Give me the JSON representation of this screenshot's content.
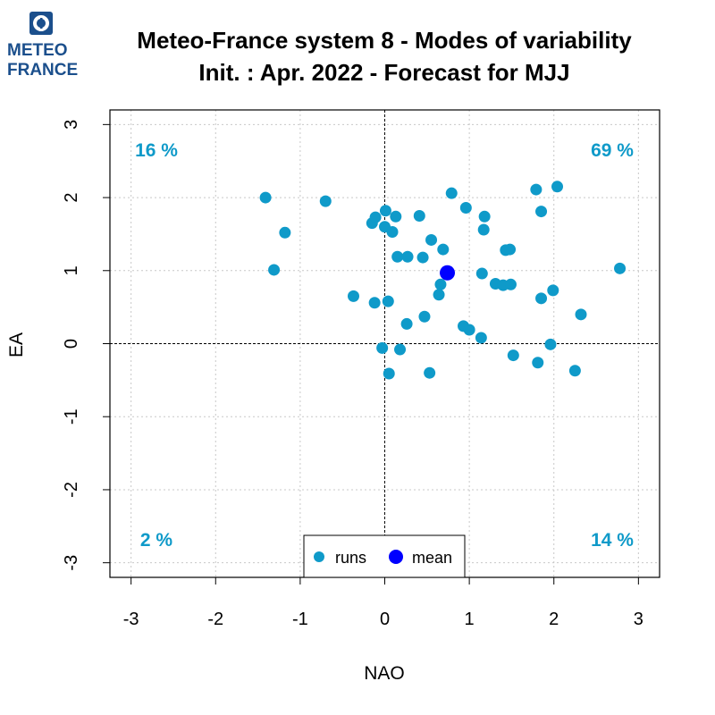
{
  "logo": {
    "line1": "METEO",
    "line2": "FRANCE"
  },
  "colors": {
    "runs": "#0f9ac9",
    "mean": "#0000ff",
    "quadrant_text": "#0f9ac9",
    "logo": "#1b4f8c"
  },
  "chart_data": {
    "type": "scatter",
    "title": "Meteo-France system 8 - Modes of variability",
    "subtitle": "Init. : Apr. 2022 - Forecast for MJJ",
    "xlabel": "NAO",
    "ylabel": "EA",
    "xlim": [
      -3.25,
      3.25
    ],
    "ylim": [
      -3.2,
      3.2
    ],
    "xticks": [
      -3,
      -2,
      -1,
      0,
      1,
      2,
      3
    ],
    "yticks": [
      -3,
      -2,
      -1,
      0,
      1,
      2,
      3
    ],
    "grid": true,
    "legend_position": "bottom-center",
    "quadrant_labels": {
      "top_left": "16 %",
      "top_right": "69 %",
      "bottom_left": "2 %",
      "bottom_right": "14 %"
    },
    "series": [
      {
        "name": "runs",
        "points": [
          [
            -1.41,
            2.0
          ],
          [
            -0.7,
            1.95
          ],
          [
            -1.18,
            1.52
          ],
          [
            -1.31,
            1.01
          ],
          [
            -0.37,
            0.65
          ],
          [
            -0.12,
            0.56
          ],
          [
            0.04,
            0.58
          ],
          [
            -0.15,
            1.65
          ],
          [
            -0.11,
            1.73
          ],
          [
            0.01,
            1.82
          ],
          [
            0.13,
            1.74
          ],
          [
            0.0,
            1.6
          ],
          [
            0.09,
            1.53
          ],
          [
            0.41,
            1.75
          ],
          [
            0.79,
            2.06
          ],
          [
            0.96,
            1.86
          ],
          [
            1.18,
            1.74
          ],
          [
            1.17,
            1.56
          ],
          [
            0.55,
            1.42
          ],
          [
            0.69,
            1.29
          ],
          [
            0.15,
            1.19
          ],
          [
            0.27,
            1.19
          ],
          [
            0.45,
            1.18
          ],
          [
            1.43,
            1.28
          ],
          [
            1.48,
            1.29
          ],
          [
            1.15,
            0.96
          ],
          [
            1.79,
            2.11
          ],
          [
            2.04,
            2.15
          ],
          [
            1.85,
            1.81
          ],
          [
            2.78,
            1.03
          ],
          [
            1.31,
            0.82
          ],
          [
            1.4,
            0.8
          ],
          [
            1.49,
            0.81
          ],
          [
            1.99,
            0.73
          ],
          [
            1.85,
            0.62
          ],
          [
            2.32,
            0.4
          ],
          [
            0.66,
            0.81
          ],
          [
            0.64,
            0.67
          ],
          [
            0.47,
            0.37
          ],
          [
            0.26,
            0.27
          ],
          [
            0.93,
            0.24
          ],
          [
            1.0,
            0.19
          ],
          [
            1.14,
            0.08
          ],
          [
            1.96,
            -0.01
          ],
          [
            -0.03,
            -0.06
          ],
          [
            0.18,
            -0.08
          ],
          [
            1.52,
            -0.16
          ],
          [
            1.81,
            -0.26
          ],
          [
            2.25,
            -0.37
          ],
          [
            0.05,
            -0.41
          ],
          [
            0.53,
            -0.4
          ]
        ]
      },
      {
        "name": "mean",
        "points": [
          [
            0.74,
            0.97
          ]
        ]
      }
    ]
  }
}
